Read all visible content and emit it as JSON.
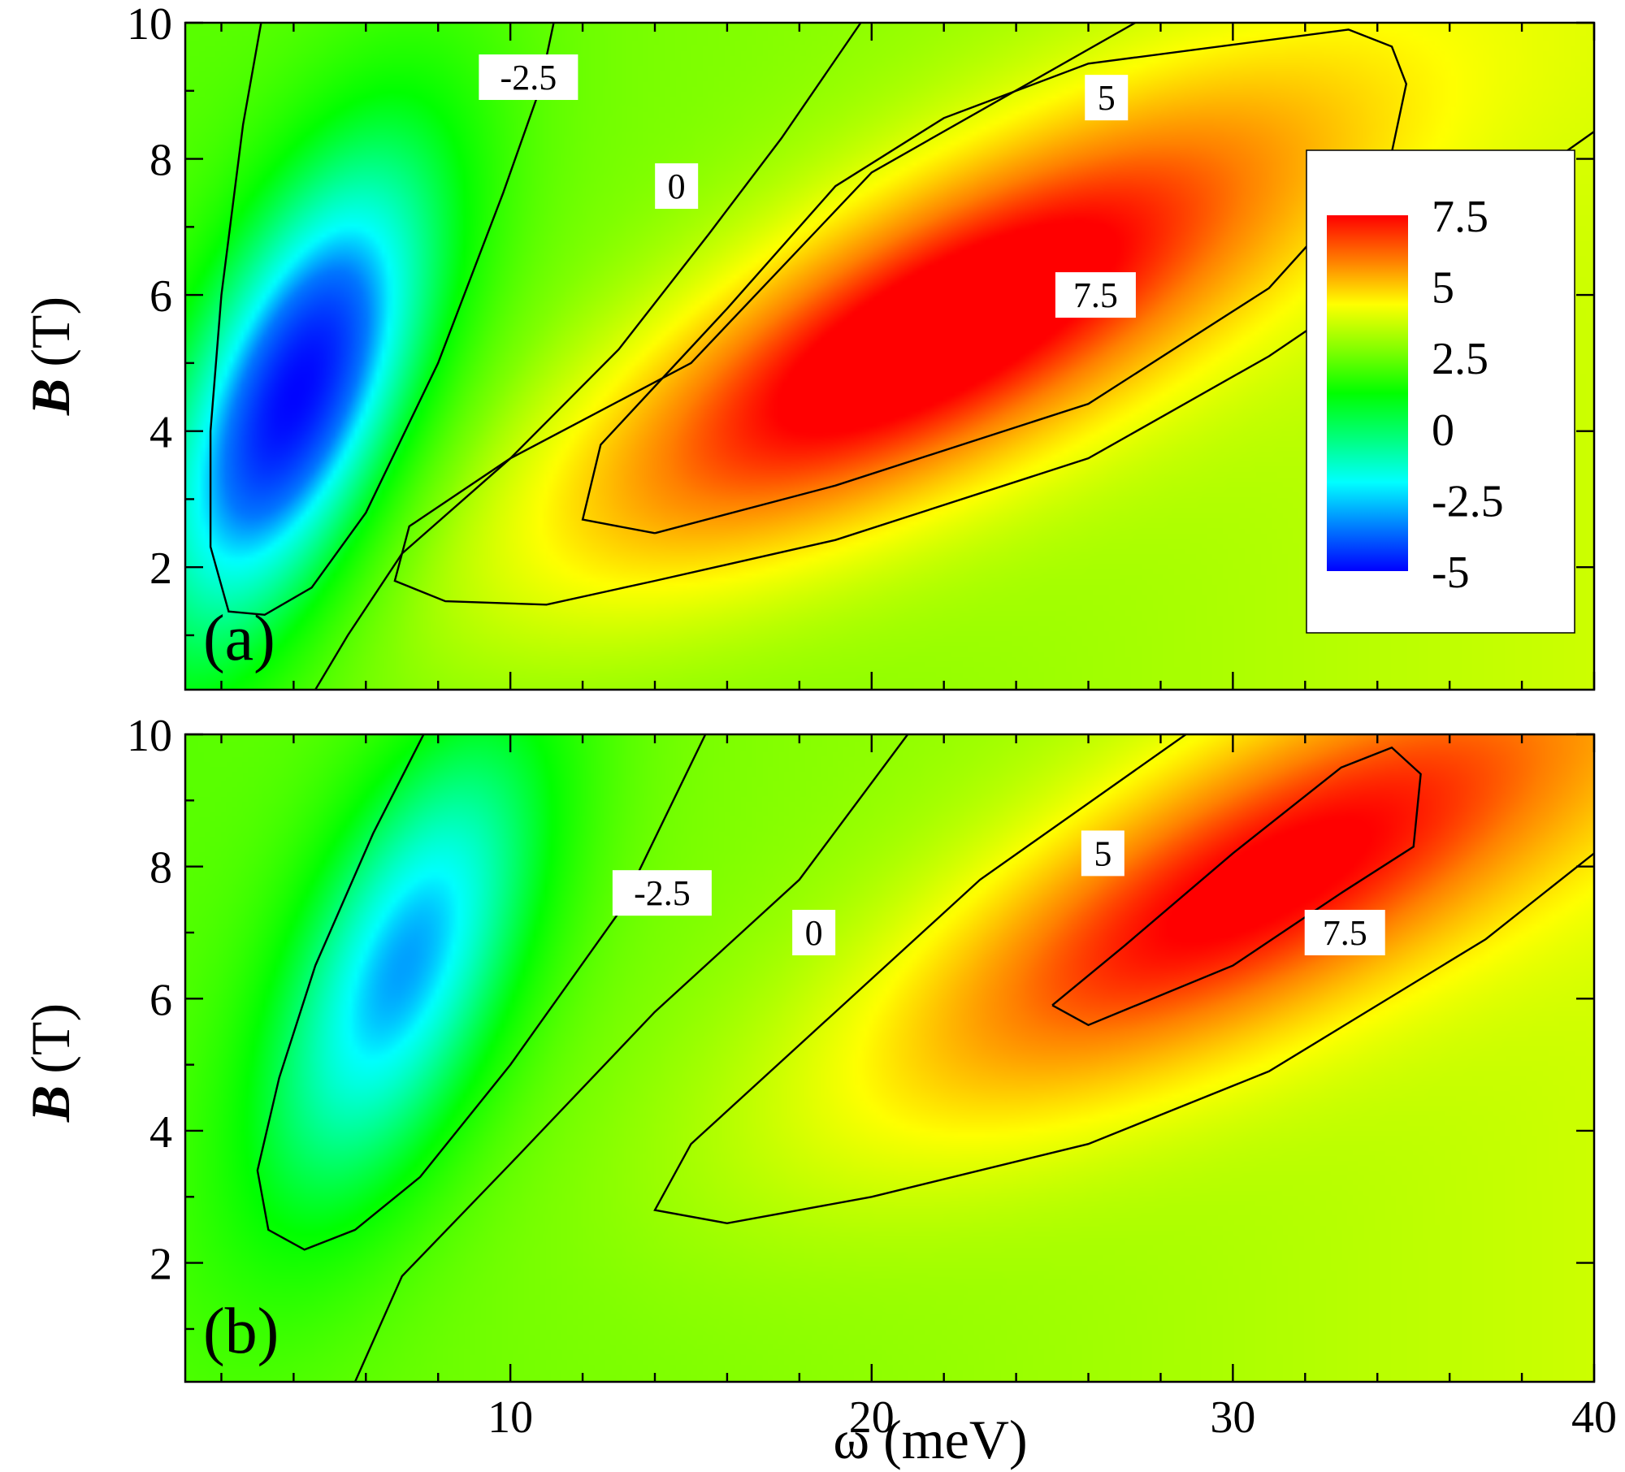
{
  "chart_data": [
    {
      "type": "heatmap",
      "panel": "(a)",
      "xlabel": "",
      "ylabel_italic": "B",
      "ylabel_unit": "(T)",
      "xlim": [
        1,
        40
      ],
      "ylim": [
        0.2,
        10
      ],
      "xticks": [
        10,
        20,
        30,
        40
      ],
      "yticks": [
        2,
        4,
        6,
        8,
        10
      ],
      "ytick_labels": [
        "2",
        "4",
        "6",
        "8",
        "10"
      ],
      "peak": {
        "x": 22,
        "y": 5.5,
        "value": 9.2
      },
      "trough": {
        "x": 4,
        "y": 4.5,
        "value": -5
      },
      "contours": [
        {
          "level": -2.5,
          "label": "-2.5",
          "label_at": [
            10.5,
            9.2
          ],
          "points": [
            [
              3.1,
              10
            ],
            [
              2.6,
              8.5
            ],
            [
              2.0,
              6
            ],
            [
              1.7,
              4
            ],
            [
              1.7,
              2.3
            ],
            [
              2.2,
              1.35
            ],
            [
              3.2,
              1.3
            ],
            [
              4.5,
              1.7
            ],
            [
              6,
              2.8
            ],
            [
              8,
              5
            ],
            [
              9.8,
              7.5
            ],
            [
              10.8,
              9
            ],
            [
              11.2,
              10
            ]
          ]
        },
        {
          "level": 0,
          "label": "0",
          "label_at": [
            14.6,
            7.6
          ],
          "points": [
            [
              4.6,
              0.2
            ],
            [
              5.5,
              1.0
            ],
            [
              7,
              2.2
            ],
            [
              10,
              3.6
            ],
            [
              13,
              5.2
            ],
            [
              15.5,
              6.9
            ],
            [
              17.5,
              8.3
            ],
            [
              19.7,
              10
            ]
          ]
        },
        {
          "level": 5,
          "label": "5",
          "label_at": [
            26.5,
            8.9
          ],
          "points": [
            [
              40,
              8.4
            ],
            [
              36,
              6.9
            ],
            [
              31,
              5.1
            ],
            [
              26,
              3.6
            ],
            [
              19,
              2.4
            ],
            [
              14,
              1.8
            ],
            [
              11,
              1.45
            ],
            [
              8.2,
              1.5
            ],
            [
              6.8,
              1.8
            ],
            [
              7.2,
              2.6
            ],
            [
              10,
              3.6
            ],
            [
              15,
              5.0
            ],
            [
              20,
              7.8
            ],
            [
              27.3,
              10
            ]
          ]
        },
        {
          "level": 7.5,
          "label": "7.5",
          "label_at": [
            26.2,
            6.0
          ],
          "points": [
            [
              14,
              2.5
            ],
            [
              12,
              2.7
            ],
            [
              12.5,
              3.8
            ],
            [
              16,
              5.8
            ],
            [
              19,
              7.6
            ],
            [
              22,
              8.6
            ],
            [
              26,
              9.4
            ],
            [
              33.2,
              9.9
            ],
            [
              34.4,
              9.65
            ],
            [
              34.8,
              9.1
            ],
            [
              34.4,
              8.1
            ],
            [
              31,
              6.1
            ],
            [
              26,
              4.4
            ],
            [
              19,
              3.2
            ],
            [
              14,
              2.5
            ]
          ]
        }
      ]
    },
    {
      "type": "heatmap",
      "panel": "(b)",
      "xlabel": "ω (meV)",
      "ylabel_italic": "B",
      "ylabel_unit": "(T)",
      "xlim": [
        1,
        40
      ],
      "ylim": [
        0.2,
        10
      ],
      "xticks": [
        10,
        20,
        30,
        40
      ],
      "xtick_labels": [
        "10",
        "20",
        "30",
        "40"
      ],
      "yticks": [
        2,
        4,
        6,
        8,
        10
      ],
      "ytick_labels": [
        "2",
        "4",
        "6",
        "8",
        "10"
      ],
      "peak": {
        "x": 31,
        "y": 7.8,
        "value": 8.5
      },
      "trough": {
        "x": 7,
        "y": 6.5,
        "value": -3.2
      },
      "contours": [
        {
          "level": -2.5,
          "label": "-2.5",
          "label_at": [
            14.2,
            7.6
          ],
          "points": [
            [
              7.6,
              10
            ],
            [
              6.2,
              8.5
            ],
            [
              4.6,
              6.5
            ],
            [
              3.6,
              4.8
            ],
            [
              3.0,
              3.4
            ],
            [
              3.3,
              2.5
            ],
            [
              4.3,
              2.2
            ],
            [
              5.7,
              2.5
            ],
            [
              7.5,
              3.3
            ],
            [
              10,
              5.0
            ],
            [
              13,
              7.3
            ],
            [
              15.4,
              10
            ]
          ]
        },
        {
          "level": 0,
          "label": "0",
          "label_at": [
            18.4,
            7.0
          ],
          "points": [
            [
              5.7,
              0.2
            ],
            [
              7,
              1.8
            ],
            [
              10,
              3.5
            ],
            [
              14,
              5.8
            ],
            [
              18,
              7.8
            ],
            [
              21,
              10
            ]
          ]
        },
        {
          "level": 5,
          "label": "5",
          "label_at": [
            26.4,
            8.2
          ],
          "points": [
            [
              40,
              8.2
            ],
            [
              37,
              6.9
            ],
            [
              31,
              4.9
            ],
            [
              26,
              3.8
            ],
            [
              20,
              3.0
            ],
            [
              16,
              2.6
            ],
            [
              14,
              2.8
            ],
            [
              15,
              3.8
            ],
            [
              19,
              5.8
            ],
            [
              23,
              7.8
            ],
            [
              28.7,
              10
            ]
          ]
        },
        {
          "level": 7.5,
          "label": "7.5",
          "label_at": [
            33.1,
            7.0
          ],
          "points": [
            [
              25,
              5.9
            ],
            [
              27,
              6.8
            ],
            [
              30,
              8.2
            ],
            [
              33,
              9.5
            ],
            [
              34.4,
              9.8
            ],
            [
              35.2,
              9.4
            ],
            [
              35,
              8.3
            ],
            [
              33,
              7.6
            ],
            [
              30,
              6.5
            ],
            [
              26,
              5.6
            ],
            [
              25,
              5.9
            ]
          ]
        }
      ]
    }
  ],
  "colorbar": {
    "ticks": [
      "7.5",
      "5",
      "2.5",
      "0",
      "-2.5",
      "-5"
    ],
    "tick_values": [
      7.5,
      5,
      2.5,
      0,
      -2.5,
      -5
    ],
    "colors": [
      "#0000ff",
      "#00a0ff",
      "#00ffff",
      "#00ff80",
      "#00ff00",
      "#80ff00",
      "#ffff00",
      "#ff8000",
      "#ff0000"
    ]
  }
}
